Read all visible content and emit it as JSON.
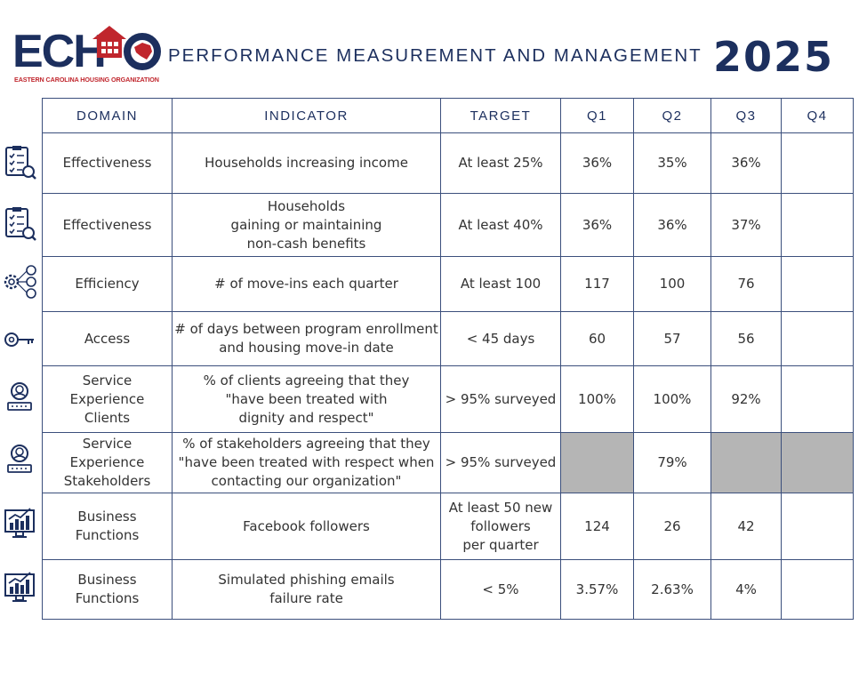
{
  "header": {
    "logo_text": "ECHO",
    "logo_subtitle": "EASTERN CAROLINA HOUSING ORGANIZATION",
    "title": "PERFORMANCE MEASUREMENT AND MANAGEMENT",
    "year": "2025"
  },
  "colors": {
    "navy": "#1c2f5e",
    "red": "#c0262d",
    "shade": "#b5b5b5"
  },
  "table": {
    "headers": [
      "DOMAIN",
      "INDICATOR",
      "TARGET",
      "Q1",
      "Q2",
      "Q3",
      "Q4"
    ],
    "rows": [
      {
        "icon": "checklist-icon",
        "domain": "Effectiveness",
        "indicator": "Households increasing income",
        "target": "At least 25%",
        "q1": "36%",
        "q2": "35%",
        "q3": "36%",
        "q4": ""
      },
      {
        "icon": "checklist-icon",
        "domain": "Effectiveness",
        "indicator": "Households\ngaining or maintaining\nnon-cash benefits",
        "target": "At least 40%",
        "q1": "36%",
        "q2": "36%",
        "q3": "37%",
        "q4": ""
      },
      {
        "icon": "gears-money-icon",
        "domain": "Efficiency",
        "indicator": "# of move-ins each quarter",
        "target": "At least 100",
        "q1": "117",
        "q2": "100",
        "q3": "76",
        "q4": ""
      },
      {
        "icon": "key-icon",
        "domain": "Access",
        "indicator": "# of days between program enrollment\nand housing move-in date",
        "target": "< 45 days",
        "q1": "60",
        "q2": "57",
        "q3": "56",
        "q4": ""
      },
      {
        "icon": "service-person-icon",
        "domain": "Service Experience\nClients",
        "indicator": "% of clients agreeing that they\n\"have been treated with\ndignity and respect\"",
        "target": "> 95% surveyed",
        "q1": "100%",
        "q2": "100%",
        "q3": "92%",
        "q4": ""
      },
      {
        "icon": "service-person-icon",
        "domain": "Service Experience\nStakeholders",
        "indicator": "% of stakeholders agreeing that they\n\"have been treated with respect when\ncontacting our organization\"",
        "target": "> 95% surveyed",
        "q1": "",
        "q2": "79%",
        "q3": "",
        "q4": ""
      },
      {
        "icon": "chart-monitor-icon",
        "domain": "Business Functions",
        "indicator": "Facebook followers",
        "target": "At least 50 new\nfollowers\nper quarter",
        "q1": "124",
        "q2": "26",
        "q3": "42",
        "q4": ""
      },
      {
        "icon": "chart-monitor-icon",
        "domain": "Business Functions",
        "indicator": "Simulated phishing emails\nfailure rate",
        "target": "< 5%",
        "q1": "3.57%",
        "q2": "2.63%",
        "q3": "4%",
        "q4": ""
      }
    ]
  }
}
